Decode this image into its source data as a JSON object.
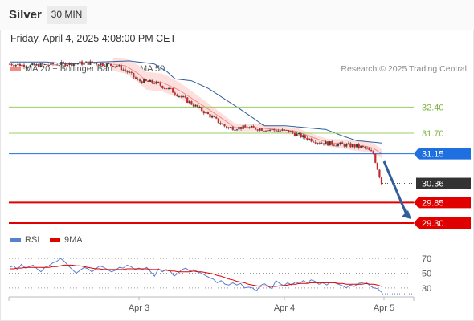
{
  "header": {
    "title": "Silver",
    "timeframe": "30 MIN"
  },
  "timestamp": "Friday, April 4, 2025 4:08:00 PM CET",
  "legend": {
    "ma20": {
      "label": "MA 20 + Bollinger Bands",
      "color": "#f28b82"
    },
    "ma50": {
      "label": "MA 50",
      "color": "#2f5d9e"
    }
  },
  "copyright": "Research © 2025 Trading Central",
  "rsi_legend": {
    "rsi": {
      "label": "RSI",
      "color": "#5b7fd1"
    },
    "ma9": {
      "label": "9MA",
      "color": "#e00000"
    }
  },
  "chart_data": {
    "type": "candlestick",
    "instrument": "Silver",
    "interval": "30 MIN",
    "x_ticks": [
      "Apr 3",
      "Apr 4",
      "Apr 5"
    ],
    "price_ylim": [
      28.4,
      34.4
    ],
    "levels": [
      {
        "value": "32.40",
        "kind": "resistance",
        "style": "thin-green",
        "color": "#9ccc65"
      },
      {
        "value": "31.70",
        "kind": "resistance",
        "style": "thin-green",
        "color": "#9ccc65"
      },
      {
        "value": "31.15",
        "kind": "pivot",
        "style": "blue",
        "color": "#1e6fe0"
      },
      {
        "value": "30.36",
        "kind": "last",
        "style": "dotted",
        "color": "#333333"
      },
      {
        "value": "29.85",
        "kind": "support",
        "style": "red",
        "color": "#e00000"
      },
      {
        "value": "29.30",
        "kind": "support",
        "style": "red",
        "color": "#e00000"
      }
    ],
    "projection": {
      "from": 30.95,
      "to": 29.45,
      "color": "#2f5d9e"
    },
    "rsi": {
      "ylim": [
        20,
        80
      ],
      "ticks": [
        "70",
        "50",
        "30"
      ],
      "rsi_values": [
        58,
        60,
        55,
        62,
        57,
        59,
        61,
        56,
        52,
        58,
        60,
        64,
        66,
        70,
        66,
        60,
        55,
        50,
        54,
        58,
        56,
        52,
        56,
        60,
        58,
        55,
        52,
        54,
        58,
        57,
        61,
        59,
        55,
        57,
        55,
        58,
        52,
        46,
        56,
        52,
        55,
        53,
        46,
        50,
        55,
        57,
        53,
        55,
        52,
        50,
        47,
        44,
        42,
        37,
        40,
        35,
        34,
        37,
        34,
        36,
        30,
        31,
        30,
        26,
        33,
        36,
        32,
        29,
        40,
        36,
        33,
        37,
        34,
        38,
        36,
        40,
        37,
        41,
        39,
        35,
        37,
        34,
        38,
        37,
        35,
        33,
        30,
        34,
        32,
        36,
        37,
        38,
        33,
        30,
        29,
        24
      ],
      "ma9_values": [
        56,
        56,
        57,
        57,
        58,
        58,
        58,
        58,
        58,
        58,
        58,
        59,
        59,
        60,
        61,
        61,
        61,
        60,
        60,
        59,
        58,
        57,
        56,
        56,
        55,
        55,
        55,
        55,
        55,
        55,
        56,
        56,
        56,
        56,
        56,
        56,
        55,
        55,
        55,
        54,
        54,
        53,
        53,
        52,
        52,
        52,
        52,
        53,
        52,
        52,
        51,
        50,
        49,
        47,
        46,
        44,
        42,
        41,
        39,
        38,
        37,
        35,
        34,
        33,
        32,
        33,
        32,
        32,
        32,
        33,
        33,
        34,
        35,
        35,
        36,
        36,
        36,
        37,
        37,
        37,
        37,
        37,
        37,
        37,
        36,
        36,
        35,
        35,
        35,
        35,
        35,
        36,
        35,
        35,
        34,
        32
      ]
    },
    "series": [
      {
        "name": "MA 20 + Bollinger Bands",
        "color": "#f28b82"
      },
      {
        "name": "MA 50",
        "color": "#2f5d9e"
      }
    ]
  }
}
